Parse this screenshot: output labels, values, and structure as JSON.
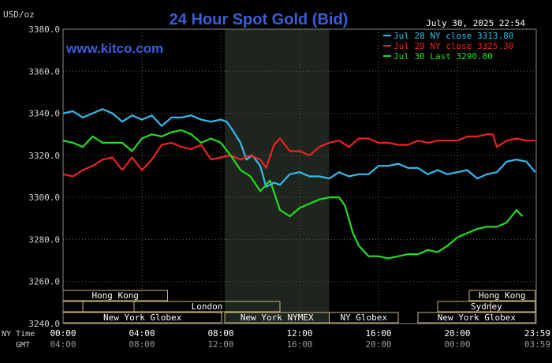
{
  "chart_data": {
    "type": "line",
    "title": "24 Hour Spot Gold (Bid)",
    "ylabel": "USD/oz",
    "timestamp": "July 30, 2025 22:54",
    "watermark": "www.kitco.com",
    "ylim": [
      3240,
      3380
    ],
    "y_ticks": [
      "3380.0",
      "3360.0",
      "3340.0",
      "3320.0",
      "3300.0",
      "3280.0",
      "3260.0",
      "3240.0"
    ],
    "x_range_hours": [
      0,
      24
    ],
    "x_ticks_ny": [
      "00:00",
      "04:00",
      "08:00",
      "12:00",
      "16:00",
      "20:00",
      "23:59"
    ],
    "x_ticks_gmt": [
      "04:00",
      "08:00",
      "12:00",
      "16:00",
      "20:00",
      "00:00",
      "03:59"
    ],
    "row_labels": {
      "ny": "NY Time",
      "gmt": "GMT"
    },
    "grid": true,
    "legend_position": "top-right",
    "colors": {
      "background": "#000000",
      "plot_bg": "#000000",
      "shaded_session": "#1e241e",
      "grid": "#5a5a5a",
      "axis_text": "#d0d0d0",
      "title": "#3a5ed8",
      "watermark": "#3a5ed8",
      "session_border": "#c8b87a"
    },
    "series": [
      {
        "name": "Jul 28 NY close 3313.80",
        "color": "#33bbee",
        "x": [
          0,
          0.5,
          1,
          1.5,
          2,
          2.5,
          3,
          3.5,
          4,
          4.5,
          5,
          5.5,
          6,
          6.5,
          7,
          7.5,
          8,
          8.3,
          8.6,
          9,
          9.3,
          9.6,
          10,
          10.3,
          10.7,
          11,
          11.5,
          12,
          12.5,
          13,
          13.5,
          14,
          14.5,
          15,
          15.5,
          16,
          16.5,
          17,
          17.5,
          18,
          18.5,
          19,
          19.5,
          20,
          20.5,
          21,
          21.5,
          22,
          22.5,
          23,
          23.5,
          23.95
        ],
        "y": [
          3340,
          3341,
          3338,
          3340,
          3342,
          3340,
          3336,
          3339,
          3337,
          3339,
          3334,
          3338,
          3338,
          3339,
          3337,
          3336,
          3337,
          3336,
          3332,
          3326,
          3318,
          3320,
          3315,
          3305,
          3307,
          3306,
          3311,
          3312,
          3310,
          3310,
          3309,
          3312,
          3310,
          3311,
          3311,
          3315,
          3315,
          3316,
          3314,
          3314,
          3311,
          3313,
          3311,
          3312,
          3313,
          3309,
          3311,
          3312,
          3317,
          3318,
          3317,
          3312
        ]
      },
      {
        "name": "Jul 29 NY close 3325.30",
        "color": "#ee2222",
        "x": [
          0,
          0.5,
          1,
          1.5,
          2,
          2.5,
          3,
          3.5,
          4,
          4.5,
          5,
          5.5,
          6,
          6.5,
          7,
          7.5,
          8,
          8.5,
          9,
          9.5,
          10,
          10.3,
          10.7,
          11,
          11.5,
          12,
          12.5,
          13,
          13.5,
          14,
          14.5,
          15,
          15.5,
          16,
          16.5,
          17,
          17.5,
          18,
          18.5,
          19,
          19.5,
          20,
          20.5,
          21,
          21.5,
          21.8,
          22,
          22.5,
          23,
          23.5,
          23.95
        ],
        "y": [
          3311,
          3310,
          3313,
          3315,
          3318,
          3319,
          3313,
          3319,
          3313,
          3318,
          3325,
          3326,
          3324,
          3323,
          3325,
          3318,
          3319,
          3320,
          3318,
          3320,
          3318,
          3314,
          3325,
          3328,
          3322,
          3322,
          3320,
          3324,
          3326,
          3327,
          3324,
          3328,
          3328,
          3326,
          3326,
          3325,
          3325,
          3327,
          3326,
          3327,
          3327,
          3327,
          3329,
          3329,
          3330,
          3330,
          3324,
          3327,
          3328,
          3327,
          3327
        ]
      },
      {
        "name": "Jul 30 Last 3290.80",
        "color": "#22dd22",
        "x": [
          0,
          0.5,
          1,
          1.5,
          2,
          2.5,
          3,
          3.5,
          4,
          4.5,
          5,
          5.5,
          6,
          6.5,
          7,
          7.5,
          8,
          8.5,
          9,
          9.5,
          10,
          10.5,
          11,
          11.5,
          12,
          12.5,
          13,
          13.5,
          14,
          14.3,
          14.7,
          15,
          15.5,
          16,
          16.5,
          17,
          17.5,
          18,
          18.5,
          19,
          19.5,
          20,
          20.5,
          21,
          21.5,
          22,
          22.5,
          23,
          23.3
        ],
        "y": [
          3327,
          3326,
          3324,
          3329,
          3326,
          3326,
          3326,
          3322,
          3328,
          3330,
          3329,
          3331,
          3332,
          3330,
          3326,
          3328,
          3326,
          3320,
          3313,
          3310,
          3303,
          3308,
          3294,
          3291,
          3295,
          3297,
          3299,
          3300,
          3300,
          3296,
          3283,
          3277,
          3272,
          3272,
          3271,
          3272,
          3273,
          3273,
          3275,
          3274,
          3277,
          3281,
          3283,
          3285,
          3286,
          3286,
          3288,
          3294,
          3291
        ]
      }
    ],
    "sessions": [
      {
        "label": "Hong Kong",
        "row": 0,
        "start": 0,
        "end": 5.3
      },
      {
        "label": "Hong Kong",
        "row": 0,
        "start": 20.6,
        "end": 23.95
      },
      {
        "label": "",
        "row": 1,
        "start": 0,
        "end": 1.0
      },
      {
        "label": "Sydney",
        "row": 1,
        "start": 19.0,
        "end": 23.95
      },
      {
        "label": "",
        "row": 2,
        "start": 0,
        "end": 3.6
      },
      {
        "label": "London",
        "row": 2,
        "start": 3.6,
        "end": 11.0
      },
      {
        "label": "",
        "row": 2,
        "start": 21.7,
        "end": 23.95
      },
      {
        "label": "New York Globex",
        "row": 3,
        "start": 0,
        "end": 8.05
      },
      {
        "label": "New York NYMEX",
        "row": 3,
        "start": 8.2,
        "end": 13.5
      },
      {
        "label": "NY Globex",
        "row": 3,
        "start": 13.5,
        "end": 17.0
      },
      {
        "label": "New York Globex",
        "row": 3,
        "start": 18.0,
        "end": 23.95
      }
    ],
    "shaded_range_hours": [
      8.2,
      13.5
    ]
  }
}
